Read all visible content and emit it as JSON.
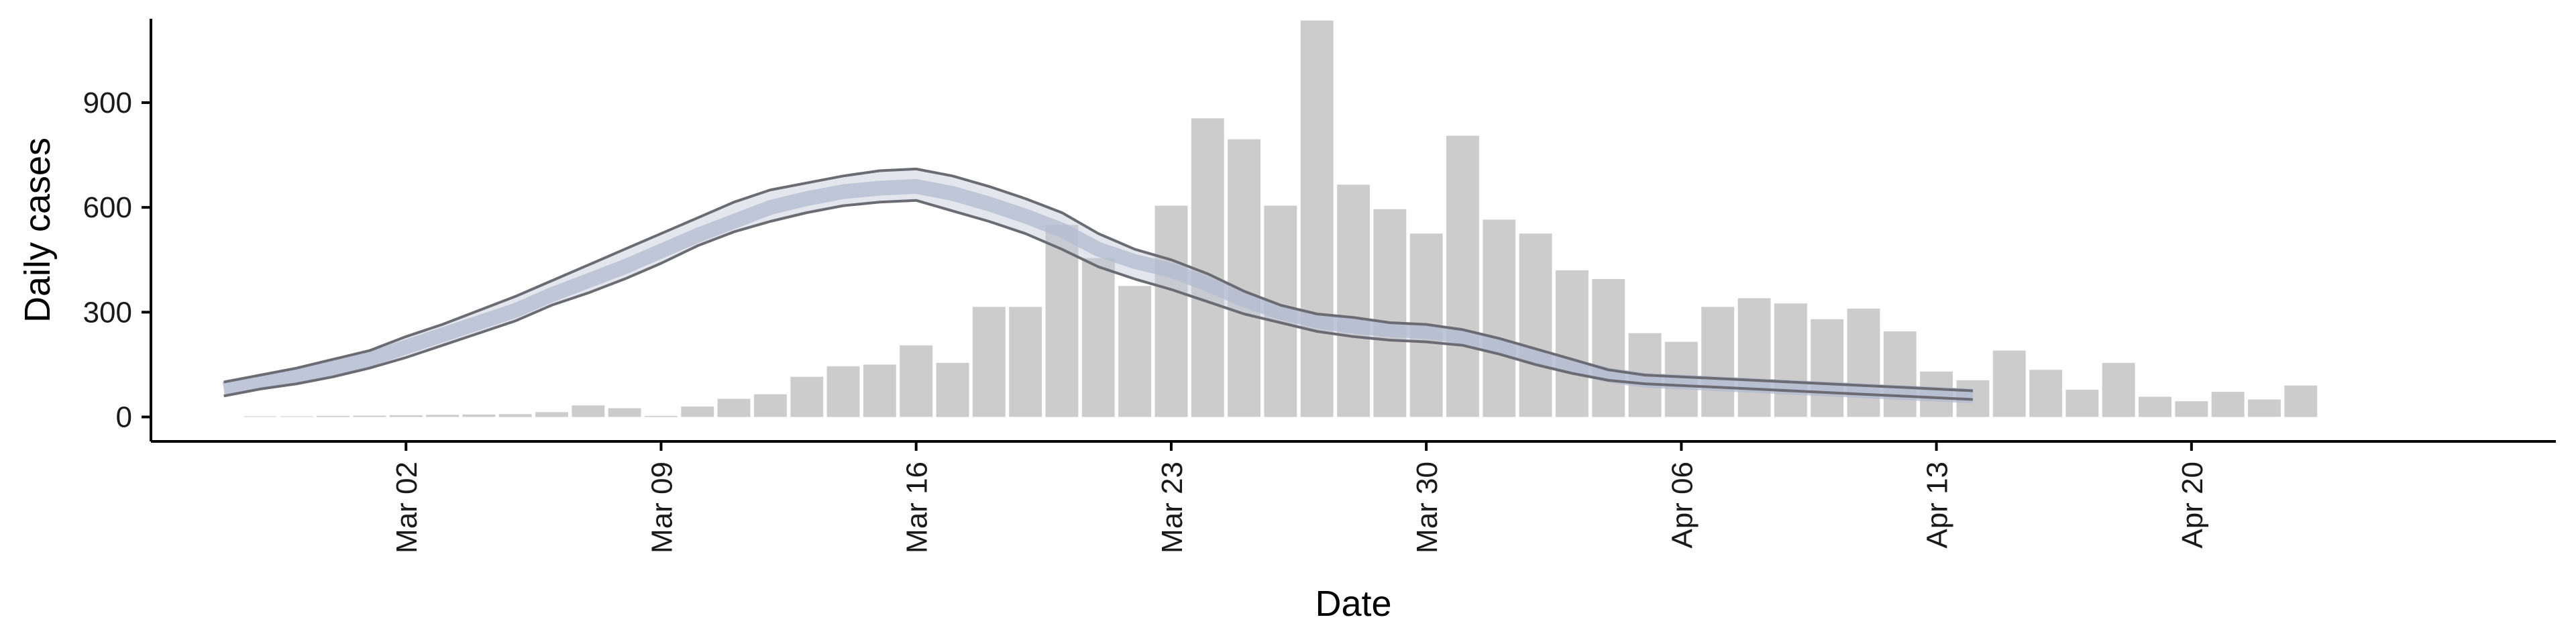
{
  "chart_data": {
    "type": "bar",
    "xlabel": "Date",
    "ylabel": "Daily cases",
    "grid": false,
    "legend": "none",
    "ylim": [
      -70,
      1140
    ],
    "y_ticks": [
      0,
      300,
      600,
      900
    ],
    "y_tick_labels": [
      "0",
      "300",
      "600",
      "900"
    ],
    "x_ticks": [
      "2020-03-02",
      "2020-03-09",
      "2020-03-16",
      "2020-03-23",
      "2020-03-30",
      "2020-04-06",
      "2020-04-13",
      "2020-04-20"
    ],
    "x_tick_labels": [
      "Mar 02",
      "Mar 09",
      "Mar 16",
      "Mar 23",
      "Mar 30",
      "Apr 06",
      "Apr 13",
      "Apr 20"
    ],
    "xlim": [
      "2020-02-24",
      "2020-04-30"
    ],
    "colors": {
      "bars": "#cccccc",
      "band_outer": "#6b6b73",
      "band_inner": "#c3c8d8",
      "band_median": "#b3bbcf",
      "axis": "#000000"
    },
    "bars": {
      "dates": [
        "2020-02-27",
        "2020-02-28",
        "2020-02-29",
        "2020-03-01",
        "2020-03-02",
        "2020-03-03",
        "2020-03-04",
        "2020-03-05",
        "2020-03-06",
        "2020-03-07",
        "2020-03-08",
        "2020-03-09",
        "2020-03-10",
        "2020-03-11",
        "2020-03-12",
        "2020-03-13",
        "2020-03-14",
        "2020-03-15",
        "2020-03-16",
        "2020-03-17",
        "2020-03-18",
        "2020-03-19",
        "2020-03-20",
        "2020-03-21",
        "2020-03-22",
        "2020-03-23",
        "2020-03-24",
        "2020-03-25",
        "2020-03-26",
        "2020-03-27",
        "2020-03-28",
        "2020-03-29",
        "2020-03-30",
        "2020-03-31",
        "2020-04-01",
        "2020-04-02",
        "2020-04-03",
        "2020-04-04",
        "2020-04-05",
        "2020-04-06",
        "2020-04-07",
        "2020-04-08",
        "2020-04-09",
        "2020-04-10",
        "2020-04-11",
        "2020-04-12",
        "2020-04-13",
        "2020-04-14",
        "2020-04-15",
        "2020-04-16",
        "2020-04-17",
        "2020-04-18",
        "2020-04-19",
        "2020-04-20",
        "2020-04-21",
        "2020-04-22",
        "2020-04-23",
        "2020-04-24"
      ],
      "values": [
        2,
        2,
        3,
        4,
        5,
        6,
        7,
        8,
        14,
        33,
        25,
        3,
        30,
        52,
        65,
        115,
        145,
        150,
        205,
        155,
        315,
        315,
        550,
        455,
        375,
        605,
        855,
        795,
        605,
        1135,
        665,
        595,
        525,
        805,
        565,
        525,
        420,
        395,
        240,
        215,
        315,
        340,
        325,
        280,
        310,
        245,
        130,
        105,
        190,
        135,
        78,
        155,
        58,
        45,
        72,
        50,
        90,
        0
      ]
    },
    "series": [
      {
        "dates": [
          "2020-02-26",
          "2020-02-27",
          "2020-02-28",
          "2020-02-29",
          "2020-03-01",
          "2020-03-02",
          "2020-03-03",
          "2020-03-04",
          "2020-03-05",
          "2020-03-06",
          "2020-03-07",
          "2020-03-08",
          "2020-03-09",
          "2020-03-10",
          "2020-03-11",
          "2020-03-12",
          "2020-03-13",
          "2020-03-14",
          "2020-03-15",
          "2020-03-16",
          "2020-03-17",
          "2020-03-18",
          "2020-03-19",
          "2020-03-20",
          "2020-03-21",
          "2020-03-22",
          "2020-03-23",
          "2020-03-24",
          "2020-03-25",
          "2020-03-26",
          "2020-03-27",
          "2020-03-28",
          "2020-03-29",
          "2020-03-30",
          "2020-03-31",
          "2020-04-01",
          "2020-04-02",
          "2020-04-03",
          "2020-04-04",
          "2020-04-05",
          "2020-04-06",
          "2020-04-07",
          "2020-04-08",
          "2020-04-09",
          "2020-04-10",
          "2020-04-11",
          "2020-04-12",
          "2020-04-13",
          "2020-04-14"
        ],
        "upper": [
          100,
          120,
          140,
          165,
          190,
          230,
          265,
          305,
          345,
          390,
          435,
          480,
          525,
          570,
          615,
          650,
          670,
          690,
          705,
          710,
          690,
          660,
          625,
          585,
          525,
          480,
          450,
          410,
          360,
          320,
          295,
          285,
          270,
          265,
          250,
          225,
          195,
          165,
          135,
          120,
          115,
          110,
          105,
          100,
          95,
          90,
          85,
          80,
          75
        ],
        "median": [
          80,
          100,
          120,
          140,
          165,
          200,
          235,
          270,
          305,
          350,
          390,
          430,
          475,
          520,
          560,
          600,
          625,
          645,
          655,
          660,
          640,
          610,
          575,
          535,
          480,
          445,
          420,
          380,
          335,
          300,
          275,
          260,
          250,
          245,
          230,
          205,
          175,
          145,
          120,
          105,
          100,
          95,
          90,
          85,
          80,
          75,
          70,
          65,
          60
        ],
        "lower": [
          60,
          80,
          95,
          115,
          140,
          170,
          205,
          240,
          275,
          320,
          355,
          395,
          440,
          490,
          530,
          560,
          585,
          605,
          615,
          620,
          590,
          560,
          525,
          480,
          430,
          395,
          365,
          330,
          295,
          270,
          245,
          230,
          220,
          215,
          205,
          180,
          150,
          125,
          105,
          95,
          90,
          85,
          80,
          75,
          70,
          65,
          60,
          55,
          50
        ]
      }
    ]
  }
}
